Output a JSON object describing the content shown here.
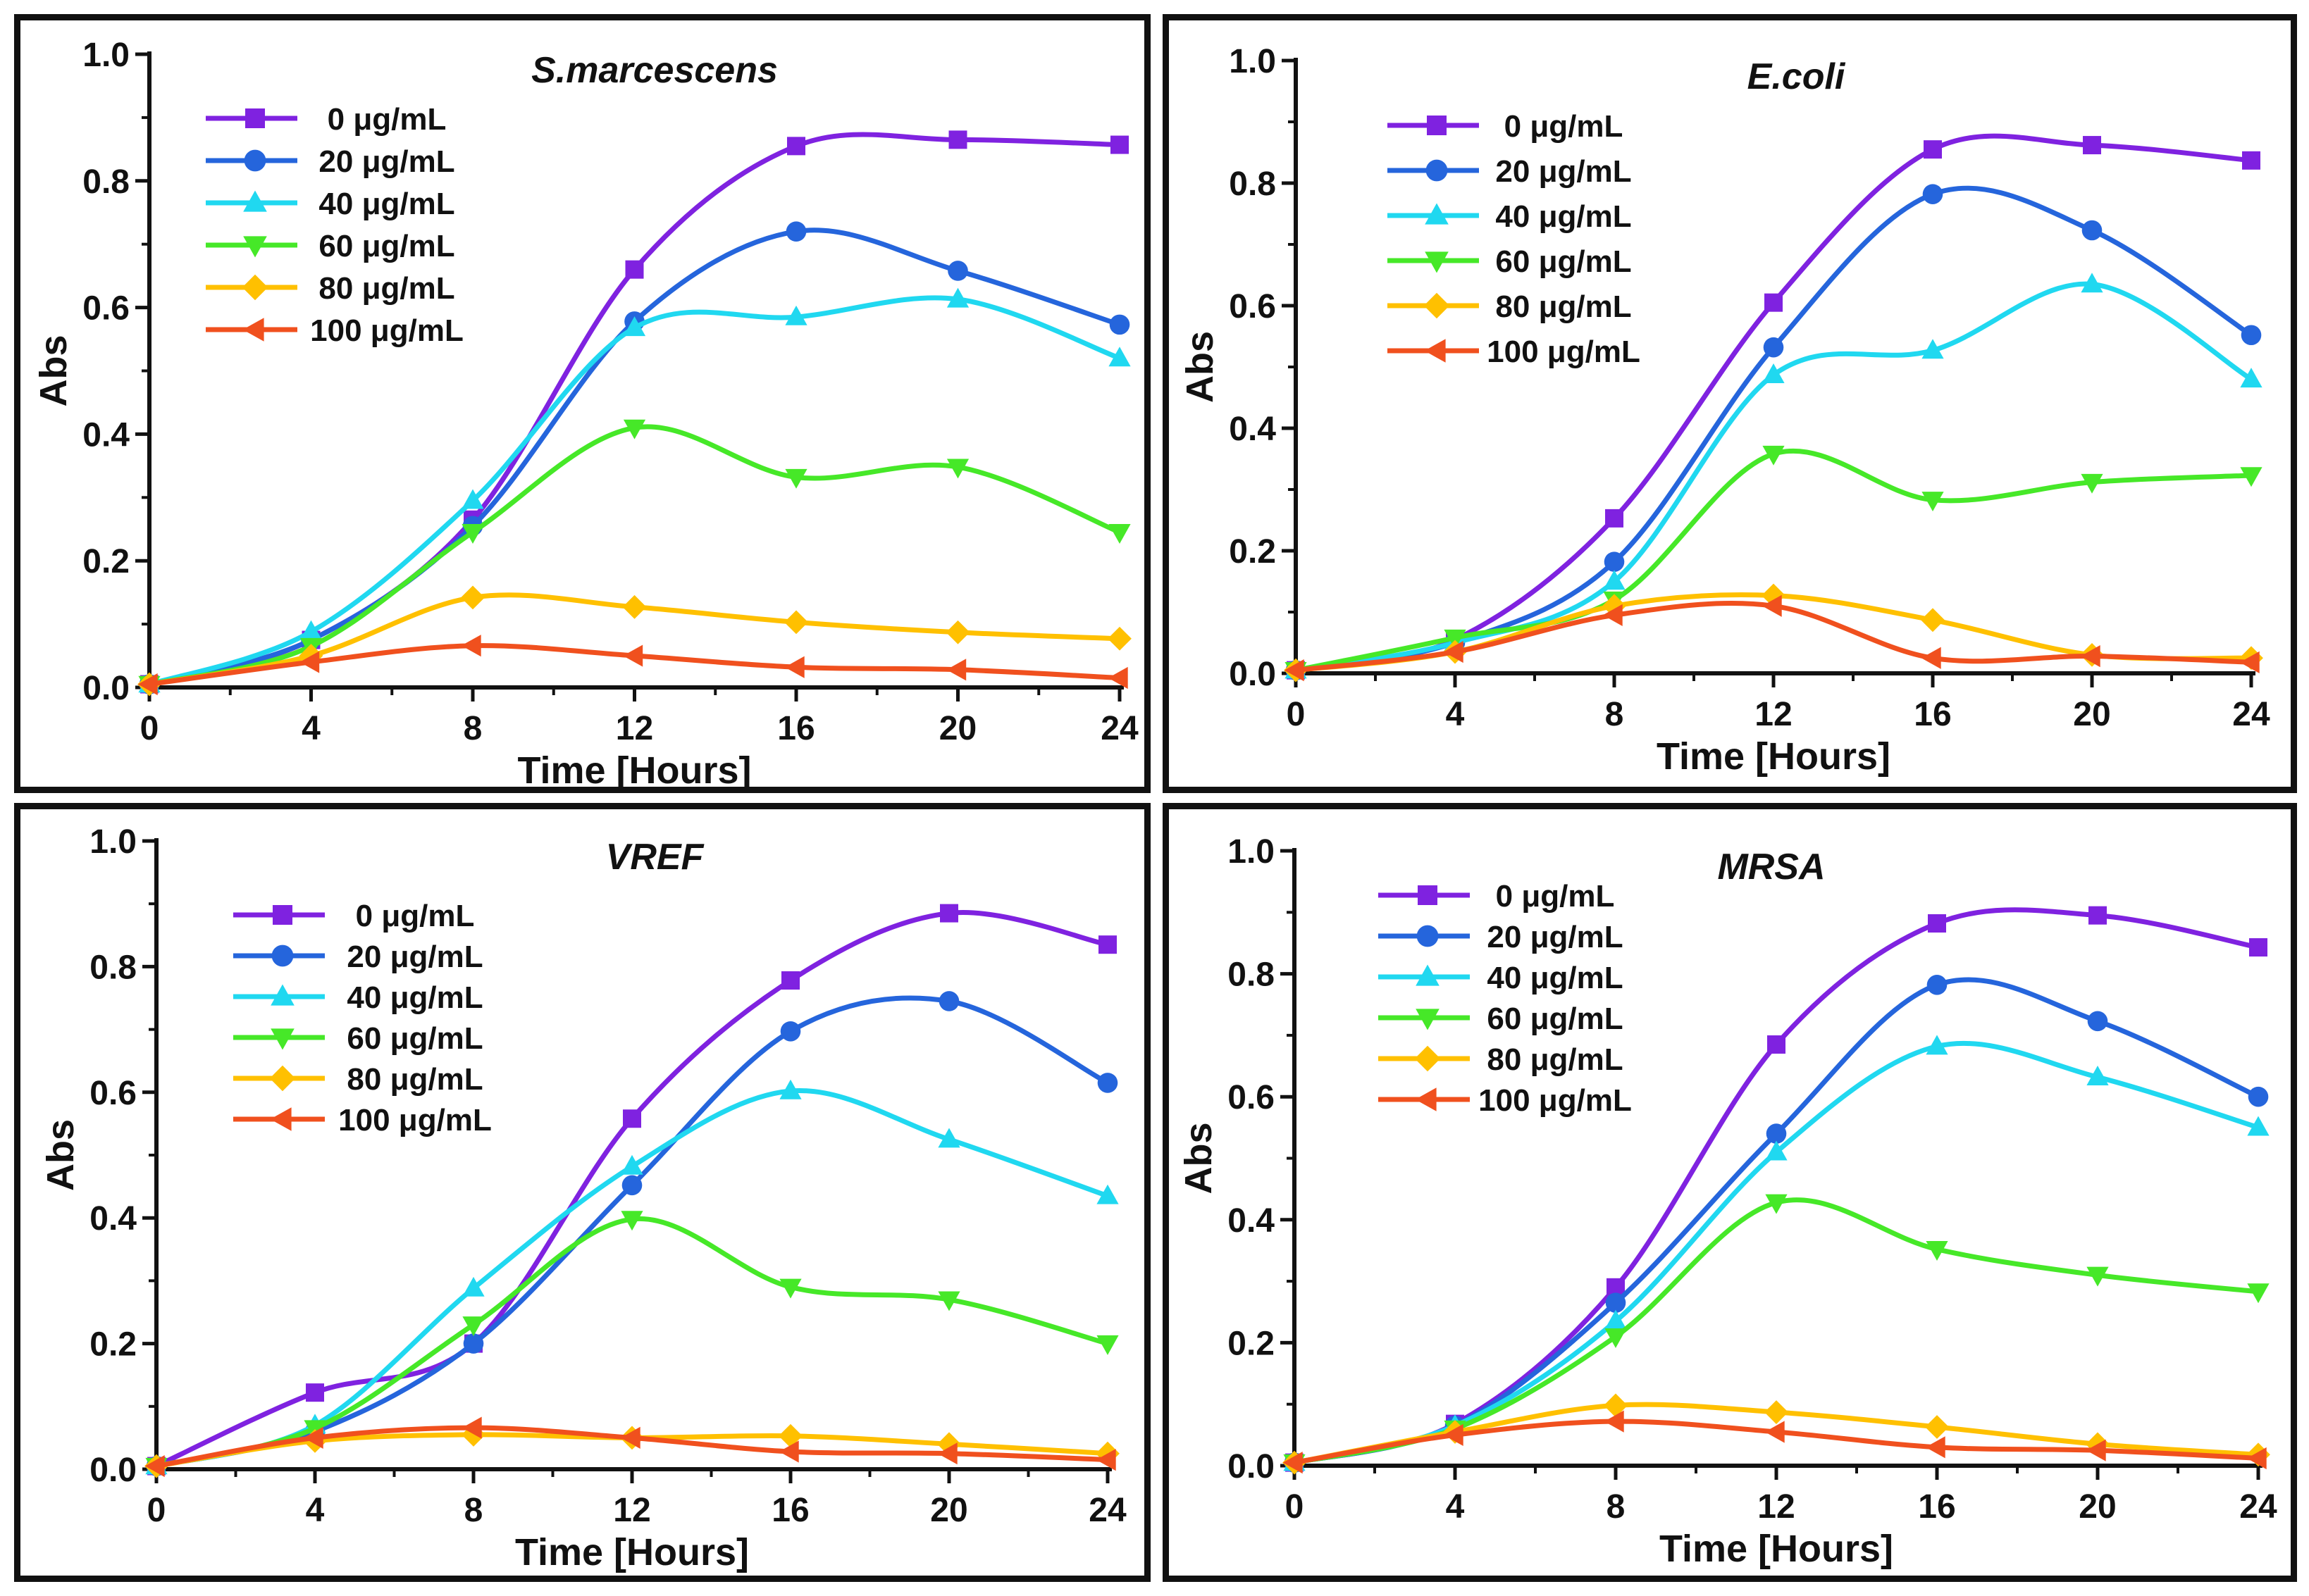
{
  "chart_data": [
    {
      "type": "line",
      "title": "S.marcescens",
      "xlabel": "Time [Hours]",
      "ylabel": "Abs",
      "x": [
        0,
        4,
        8,
        12,
        16,
        20,
        24
      ],
      "xlim": [
        0,
        24
      ],
      "ylim": [
        0,
        1.0
      ],
      "xticks": [
        "0",
        "4",
        "8",
        "12",
        "16",
        "20",
        "24"
      ],
      "yticks": [
        "0.0",
        "0.2",
        "0.4",
        "0.6",
        "0.8",
        "1.0"
      ],
      "grid": false,
      "legend_position": "top-left",
      "series": [
        {
          "name": "0 μg/mL",
          "color": "#7f22e0",
          "marker": "square",
          "values": [
            0.005,
            0.075,
            0.265,
            0.66,
            0.855,
            0.865,
            0.857
          ]
        },
        {
          "name": "20 μg/mL",
          "color": "#2565dc",
          "marker": "circle",
          "values": [
            0.005,
            0.075,
            0.255,
            0.578,
            0.72,
            0.658,
            0.573
          ]
        },
        {
          "name": "40 μg/mL",
          "color": "#20d8f0",
          "marker": "triangle-up",
          "values": [
            0.005,
            0.088,
            0.295,
            0.568,
            0.585,
            0.613,
            0.52
          ]
        },
        {
          "name": "60 μg/mL",
          "color": "#46e828",
          "marker": "triangle-down",
          "values": [
            0.005,
            0.065,
            0.245,
            0.41,
            0.332,
            0.348,
            0.245
          ]
        },
        {
          "name": "80 μg/mL",
          "color": "#ffc000",
          "marker": "diamond",
          "values": [
            0.005,
            0.05,
            0.142,
            0.127,
            0.103,
            0.087,
            0.077
          ]
        },
        {
          "name": "100 μg/mL",
          "color": "#f0501e",
          "marker": "triangle-left",
          "values": [
            0.005,
            0.04,
            0.066,
            0.05,
            0.032,
            0.028,
            0.015
          ]
        }
      ]
    },
    {
      "type": "line",
      "title": "E.coli",
      "xlabel": "Time [Hours]",
      "ylabel": "Abs",
      "x": [
        0,
        4,
        8,
        12,
        16,
        20,
        24
      ],
      "xlim": [
        0,
        24
      ],
      "ylim": [
        0,
        1.0
      ],
      "xticks": [
        "0",
        "4",
        "8",
        "12",
        "16",
        "20",
        "24"
      ],
      "yticks": [
        "0.0",
        "0.2",
        "0.4",
        "0.6",
        "0.8",
        "1.0"
      ],
      "grid": false,
      "legend_position": "top-left",
      "series": [
        {
          "name": "0 μg/mL",
          "color": "#7f22e0",
          "marker": "square",
          "values": [
            0.005,
            0.055,
            0.253,
            0.605,
            0.855,
            0.862,
            0.837
          ]
        },
        {
          "name": "20 μg/mL",
          "color": "#2565dc",
          "marker": "circle",
          "values": [
            0.005,
            0.05,
            0.182,
            0.532,
            0.782,
            0.723,
            0.552
          ]
        },
        {
          "name": "40 μg/mL",
          "color": "#20d8f0",
          "marker": "triangle-up",
          "values": [
            0.005,
            0.05,
            0.15,
            0.487,
            0.527,
            0.635,
            0.48
          ]
        },
        {
          "name": "60 μg/mL",
          "color": "#46e828",
          "marker": "triangle-down",
          "values": [
            0.005,
            0.058,
            0.12,
            0.358,
            0.283,
            0.312,
            0.323
          ]
        },
        {
          "name": "80 μg/mL",
          "color": "#ffc000",
          "marker": "diamond",
          "values": [
            0.005,
            0.035,
            0.11,
            0.127,
            0.087,
            0.03,
            0.025
          ]
        },
        {
          "name": "100 μg/mL",
          "color": "#f0501e",
          "marker": "triangle-left",
          "values": [
            0.005,
            0.035,
            0.095,
            0.11,
            0.025,
            0.028,
            0.018
          ]
        }
      ]
    },
    {
      "type": "line",
      "title": "VREF",
      "xlabel": "Time [Hours]",
      "ylabel": "Abs",
      "x": [
        0,
        4,
        8,
        12,
        16,
        20,
        24
      ],
      "xlim": [
        0,
        24
      ],
      "ylim": [
        0,
        1.0
      ],
      "xticks": [
        "0",
        "4",
        "8",
        "12",
        "16",
        "20",
        "24"
      ],
      "yticks": [
        "0.0",
        "0.2",
        "0.4",
        "0.6",
        "0.8",
        "1.0"
      ],
      "grid": false,
      "legend_position": "top-left",
      "series": [
        {
          "name": "0 μg/mL",
          "color": "#7f22e0",
          "marker": "square",
          "values": [
            0.005,
            0.122,
            0.2,
            0.558,
            0.778,
            0.885,
            0.835
          ]
        },
        {
          "name": "20 μg/mL",
          "color": "#2565dc",
          "marker": "circle",
          "values": [
            0.005,
            0.06,
            0.2,
            0.452,
            0.697,
            0.745,
            0.615
          ]
        },
        {
          "name": "40 μg/mL",
          "color": "#20d8f0",
          "marker": "triangle-up",
          "values": [
            0.005,
            0.07,
            0.288,
            0.482,
            0.602,
            0.525,
            0.435
          ]
        },
        {
          "name": "60 μg/mL",
          "color": "#46e828",
          "marker": "triangle-down",
          "values": [
            0.005,
            0.065,
            0.23,
            0.398,
            0.29,
            0.27,
            0.2
          ]
        },
        {
          "name": "80 μg/mL",
          "color": "#ffc000",
          "marker": "diamond",
          "values": [
            0.005,
            0.045,
            0.055,
            0.05,
            0.053,
            0.04,
            0.025
          ]
        },
        {
          "name": "100 μg/mL",
          "color": "#f0501e",
          "marker": "triangle-left",
          "values": [
            0.005,
            0.05,
            0.066,
            0.05,
            0.028,
            0.025,
            0.015
          ]
        }
      ]
    },
    {
      "type": "line",
      "title": "MRSA",
      "xlabel": "Time [Hours]",
      "ylabel": "Abs",
      "x": [
        0,
        4,
        8,
        12,
        16,
        20,
        24
      ],
      "xlim": [
        0,
        24
      ],
      "ylim": [
        0,
        1.0
      ],
      "xticks": [
        "0",
        "4",
        "8",
        "12",
        "16",
        "20",
        "24"
      ],
      "yticks": [
        "0.0",
        "0.2",
        "0.4",
        "0.6",
        "0.8",
        "1.0"
      ],
      "grid": false,
      "legend_position": "top-left",
      "series": [
        {
          "name": "0 μg/mL",
          "color": "#7f22e0",
          "marker": "square",
          "values": [
            0.005,
            0.068,
            0.29,
            0.685,
            0.882,
            0.895,
            0.843
          ]
        },
        {
          "name": "20 μg/mL",
          "color": "#2565dc",
          "marker": "circle",
          "values": [
            0.005,
            0.065,
            0.265,
            0.54,
            0.782,
            0.723,
            0.6
          ]
        },
        {
          "name": "40 μg/mL",
          "color": "#20d8f0",
          "marker": "triangle-up",
          "values": [
            0.005,
            0.065,
            0.235,
            0.51,
            0.682,
            0.632,
            0.55
          ]
        },
        {
          "name": "60 μg/mL",
          "color": "#46e828",
          "marker": "triangle-down",
          "values": [
            0.005,
            0.06,
            0.21,
            0.428,
            0.352,
            0.31,
            0.283
          ]
        },
        {
          "name": "80 μg/mL",
          "color": "#ffc000",
          "marker": "diamond",
          "values": [
            0.005,
            0.055,
            0.098,
            0.087,
            0.063,
            0.035,
            0.018
          ]
        },
        {
          "name": "100 μg/mL",
          "color": "#f0501e",
          "marker": "triangle-left",
          "values": [
            0.005,
            0.05,
            0.072,
            0.055,
            0.03,
            0.025,
            0.012
          ]
        }
      ]
    }
  ]
}
